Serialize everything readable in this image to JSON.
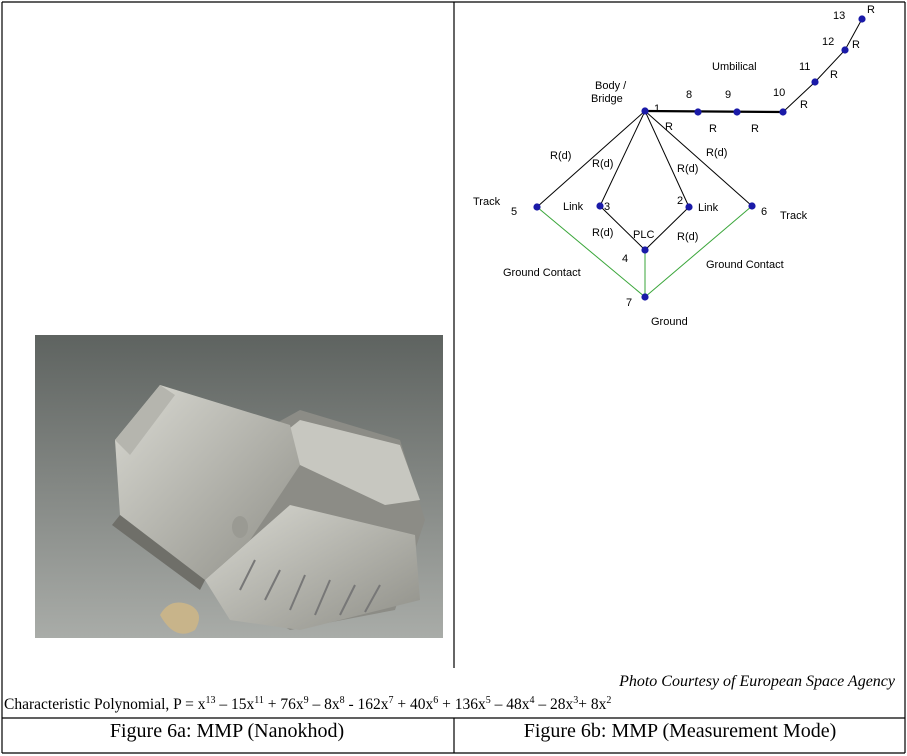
{
  "photo_credit": "Photo Courtesy of European Space Agency",
  "graph": {
    "node_numbers": [
      "1",
      "2",
      "3",
      "4",
      "5",
      "6",
      "7",
      "8",
      "9",
      "10",
      "11",
      "12",
      "13"
    ],
    "labels": [
      "Body /",
      "Bridge",
      "Umbilical",
      "Track",
      "Track",
      "Link",
      "Link",
      "PLC",
      "Ground Contact",
      "Ground Contact",
      "Ground"
    ],
    "edge_labels": [
      "R(d)",
      "R(d)",
      "R(d)",
      "R(d)",
      "R(d)",
      "R(d)",
      "R",
      "R",
      "R",
      "R",
      "R",
      "R",
      "R"
    ]
  },
  "polynomial": {
    "prefix": "Characteristic Polynomial, P = ",
    "terms": [
      {
        "text": "x",
        "sup": "13"
      },
      {
        "text": " – 15x",
        "sup": "11"
      },
      {
        "text": " + 76x",
        "sup": "9"
      },
      {
        "text": " – 8x",
        "sup": "8"
      },
      {
        "text": " - 162x",
        "sup": "7"
      },
      {
        "text": " + 40x",
        "sup": "6"
      },
      {
        "text": " + 136x",
        "sup": "5"
      },
      {
        "text": " – 48x",
        "sup": "4"
      },
      {
        "text": " – 28x",
        "sup": "3"
      },
      {
        "text": "+ 8x",
        "sup": "2"
      }
    ]
  },
  "captions": [
    "Figure 6a: MMP (Nanokhod)",
    "Figure 6b: MMP (Measurement Mode)"
  ]
}
